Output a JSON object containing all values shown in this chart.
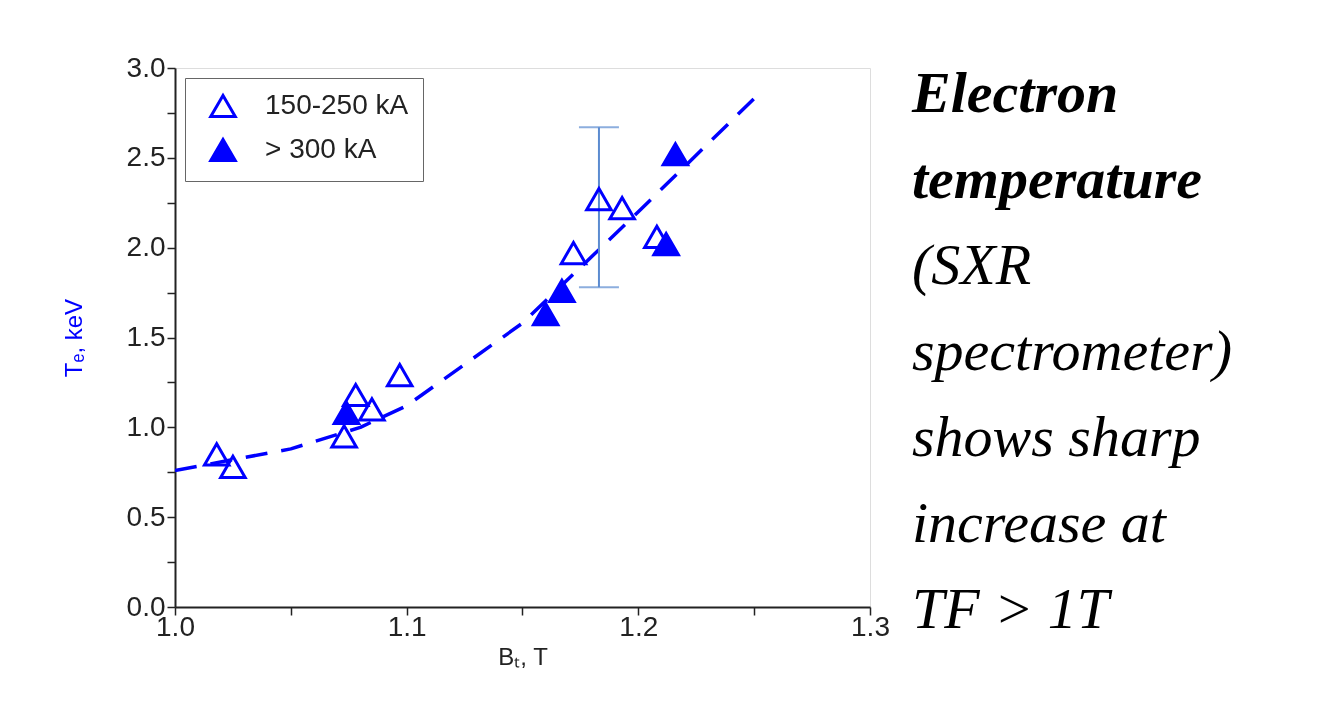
{
  "chart_data": {
    "type": "scatter",
    "xlabel": "Bₜ, T",
    "ylabel": "Tₑ, keV",
    "xlim": [
      1.0,
      1.3
    ],
    "xticks": [
      {
        "value": 1,
        "label": "1.0"
      },
      {
        "value": 1.05,
        "label": null
      },
      1.1,
      {
        "value": 1.15,
        "label": null
      },
      1.2,
      {
        "value": 1.25,
        "label": null
      },
      1.3
    ],
    "ylim": [
      0.0,
      3.0
    ],
    "yticks": [
      {
        "value": 0,
        "label": "0.0"
      },
      {
        "value": 0.25,
        "label": null
      },
      0.5,
      {
        "value": 0.75,
        "label": null
      },
      {
        "value": 1,
        "label": "1.0"
      },
      {
        "value": 1.25,
        "label": null
      },
      1.5,
      {
        "value": 1.75,
        "label": null
      },
      {
        "value": 2,
        "label": "2.0"
      },
      {
        "value": 2.25,
        "label": null
      },
      2.5,
      {
        "value": 2.75,
        "label": null
      },
      {
        "value": 3,
        "label": "3.0"
      }
    ],
    "grid": false,
    "legend": "top left",
    "marker": "triangle",
    "series": [
      {
        "name": "150-250 kA",
        "color": "#0000ff",
        "x": [
          1.018,
          1.025,
          1.073,
          1.078,
          1.085,
          1.097,
          1.172,
          1.183,
          1.193,
          1.208
        ],
        "values": [
          0.85,
          0.78,
          0.95,
          1.18,
          1.1,
          1.29,
          1.97,
          2.27,
          2.22,
          2.06
        ],
        "errors": [
          null,
          null,
          null,
          null,
          null,
          null,
          null,
          [
            1.78,
            2.67
          ],
          null,
          null
        ]
      },
      {
        "name": "> 300 kA",
        "color": "#0000ff",
        "x": [
          1.074,
          1.16,
          1.167,
          1.212,
          1.216
        ],
        "values": [
          1.08,
          1.63,
          1.76,
          2.02,
          2.52
        ]
      },
      {
        "type": "line",
        "color": "#0000ff",
        "line_style": "dashed",
        "marker": "none",
        "x": [
          1.0,
          1.05,
          1.08,
          1.1,
          1.15,
          1.2,
          1.25
        ],
        "values": [
          0.76,
          0.88,
          1.0,
          1.12,
          1.58,
          2.2,
          2.83
        ]
      }
    ],
    "annotations": [
      "Electron temperature",
      "(SXR spectrometer) shows sharp increase at TF > 1T"
    ]
  }
}
